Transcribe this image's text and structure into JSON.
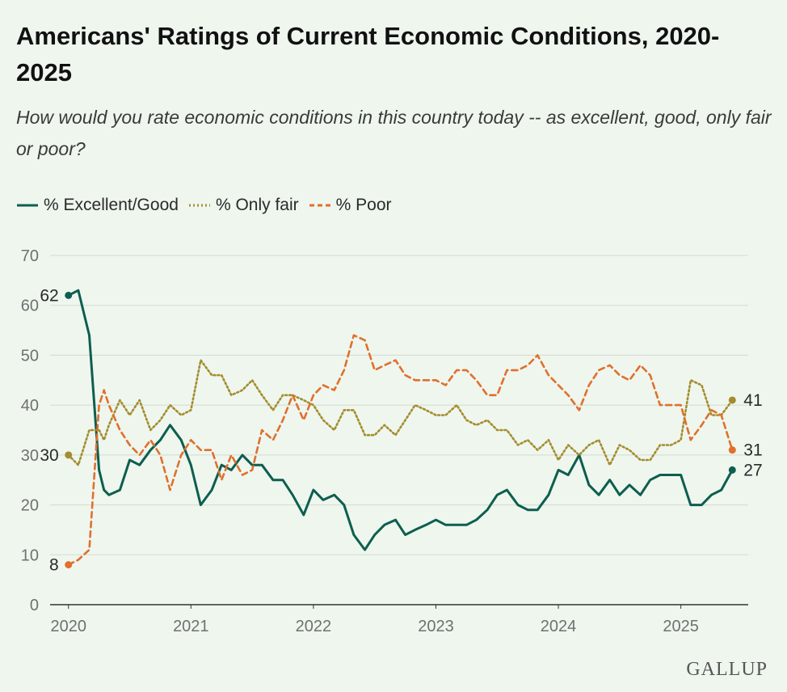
{
  "title": "Americans' Ratings of Current Economic Conditions, 2020-2025",
  "subtitle": "How would you rate economic conditions in this country today -- as excellent, good, only fair or poor?",
  "brand": "GALLUP",
  "colors": {
    "background": "#eef6ee",
    "excellent_good": "#0d5e4f",
    "only_fair": "#a48d2e",
    "poor": "#e0702c",
    "grid": "#d2dbd2",
    "axis": "#333333",
    "tick_text": "#707070"
  },
  "chart_data": {
    "type": "line",
    "title": "Americans' Ratings of Current Economic Conditions, 2020-2025",
    "xlabel": "",
    "ylabel": "",
    "ylim": [
      0,
      70
    ],
    "yticks": [
      0,
      10,
      20,
      30,
      40,
      50,
      60,
      70
    ],
    "xticks": [
      "2020",
      "2021",
      "2022",
      "2023",
      "2024",
      "2025"
    ],
    "xlim": [
      2019.85,
      2025.55
    ],
    "grid": true,
    "legend_position": "top-left",
    "series": [
      {
        "name": "% Excellent/Good",
        "style": "solid",
        "x": [
          2020.0,
          2020.08,
          2020.17,
          2020.25,
          2020.29,
          2020.33,
          2020.42,
          2020.5,
          2020.58,
          2020.67,
          2020.75,
          2020.83,
          2020.92,
          2021.0,
          2021.08,
          2021.17,
          2021.25,
          2021.33,
          2021.42,
          2021.5,
          2021.58,
          2021.67,
          2021.75,
          2021.83,
          2021.92,
          2022.0,
          2022.08,
          2022.17,
          2022.25,
          2022.33,
          2022.42,
          2022.5,
          2022.58,
          2022.67,
          2022.75,
          2022.83,
          2022.92,
          2023.0,
          2023.08,
          2023.17,
          2023.25,
          2023.33,
          2023.42,
          2023.5,
          2023.58,
          2023.67,
          2023.75,
          2023.83,
          2023.92,
          2024.0,
          2024.08,
          2024.17,
          2024.25,
          2024.33,
          2024.42,
          2024.5,
          2024.58,
          2024.67,
          2024.75,
          2024.83,
          2024.92,
          2025.0,
          2025.08,
          2025.17,
          2025.25,
          2025.33,
          2025.42
        ],
        "values": [
          62,
          63,
          54,
          27,
          23,
          22,
          23,
          29,
          28,
          31,
          33,
          36,
          33,
          28,
          20,
          23,
          28,
          27,
          30,
          28,
          28,
          25,
          25,
          22,
          18,
          23,
          21,
          22,
          20,
          14,
          11,
          14,
          16,
          17,
          14,
          15,
          16,
          17,
          16,
          16,
          16,
          17,
          19,
          22,
          23,
          20,
          19,
          19,
          22,
          27,
          26,
          30,
          24,
          22,
          25,
          22,
          24,
          22,
          25,
          26,
          26,
          26,
          20,
          20,
          22,
          23,
          27
        ]
      },
      {
        "name": "% Only fair",
        "style": "dotted",
        "x": [
          2020.0,
          2020.08,
          2020.17,
          2020.25,
          2020.29,
          2020.33,
          2020.42,
          2020.5,
          2020.58,
          2020.67,
          2020.75,
          2020.83,
          2020.92,
          2021.0,
          2021.08,
          2021.17,
          2021.25,
          2021.33,
          2021.42,
          2021.5,
          2021.58,
          2021.67,
          2021.75,
          2021.83,
          2021.92,
          2022.0,
          2022.08,
          2022.17,
          2022.25,
          2022.33,
          2022.42,
          2022.5,
          2022.58,
          2022.67,
          2022.75,
          2022.83,
          2022.92,
          2023.0,
          2023.08,
          2023.17,
          2023.25,
          2023.33,
          2023.42,
          2023.5,
          2023.58,
          2023.67,
          2023.75,
          2023.83,
          2023.92,
          2024.0,
          2024.08,
          2024.17,
          2024.25,
          2024.33,
          2024.42,
          2024.5,
          2024.58,
          2024.67,
          2024.75,
          2024.83,
          2024.92,
          2025.0,
          2025.08,
          2025.17,
          2025.25,
          2025.33,
          2025.42
        ],
        "values": [
          30,
          28,
          35,
          35,
          33,
          36,
          41,
          38,
          41,
          35,
          37,
          40,
          38,
          39,
          49,
          46,
          46,
          42,
          43,
          45,
          42,
          39,
          42,
          42,
          41,
          40,
          37,
          35,
          39,
          39,
          34,
          34,
          36,
          34,
          37,
          40,
          39,
          38,
          38,
          40,
          37,
          36,
          37,
          35,
          35,
          32,
          33,
          31,
          33,
          29,
          32,
          30,
          32,
          33,
          28,
          32,
          31,
          29,
          29,
          32,
          32,
          33,
          45,
          44,
          38,
          38,
          41
        ]
      },
      {
        "name": "% Poor",
        "style": "dashed",
        "x": [
          2020.0,
          2020.08,
          2020.17,
          2020.25,
          2020.29,
          2020.33,
          2020.42,
          2020.5,
          2020.58,
          2020.67,
          2020.75,
          2020.83,
          2020.92,
          2021.0,
          2021.08,
          2021.17,
          2021.25,
          2021.33,
          2021.42,
          2021.5,
          2021.58,
          2021.67,
          2021.75,
          2021.83,
          2021.92,
          2022.0,
          2022.08,
          2022.17,
          2022.25,
          2022.33,
          2022.42,
          2022.5,
          2022.58,
          2022.67,
          2022.75,
          2022.83,
          2022.92,
          2023.0,
          2023.08,
          2023.17,
          2023.25,
          2023.33,
          2023.42,
          2023.5,
          2023.58,
          2023.67,
          2023.75,
          2023.83,
          2023.92,
          2024.0,
          2024.08,
          2024.17,
          2024.25,
          2024.33,
          2024.42,
          2024.5,
          2024.58,
          2024.67,
          2024.75,
          2024.83,
          2024.92,
          2025.0,
          2025.08,
          2025.17,
          2025.25,
          2025.33,
          2025.42
        ],
        "values": [
          8,
          9,
          11,
          40,
          43,
          40,
          35,
          32,
          30,
          33,
          30,
          23,
          30,
          33,
          31,
          31,
          25,
          30,
          26,
          27,
          35,
          33,
          37,
          42,
          37,
          42,
          44,
          43,
          47,
          54,
          53,
          47,
          48,
          49,
          46,
          45,
          45,
          45,
          44,
          47,
          47,
          45,
          42,
          42,
          47,
          47,
          48,
          50,
          46,
          44,
          42,
          39,
          44,
          47,
          48,
          46,
          45,
          48,
          46,
          40,
          40,
          40,
          33,
          36,
          39,
          38,
          31
        ]
      }
    ],
    "annotations": [
      {
        "series": "% Excellent/Good",
        "label": "62",
        "x": 2020.0,
        "y": 62,
        "side": "start"
      },
      {
        "series": "% Only fair",
        "label": "30",
        "x": 2020.0,
        "y": 30,
        "side": "start"
      },
      {
        "series": "% Poor",
        "label": "8",
        "x": 2020.0,
        "y": 8,
        "side": "start"
      },
      {
        "series": "% Only fair",
        "label": "41",
        "x": 2025.42,
        "y": 41,
        "side": "end"
      },
      {
        "series": "% Poor",
        "label": "31",
        "x": 2025.42,
        "y": 31,
        "side": "end"
      },
      {
        "series": "% Excellent/Good",
        "label": "27",
        "x": 2025.42,
        "y": 27,
        "side": "end"
      }
    ]
  }
}
